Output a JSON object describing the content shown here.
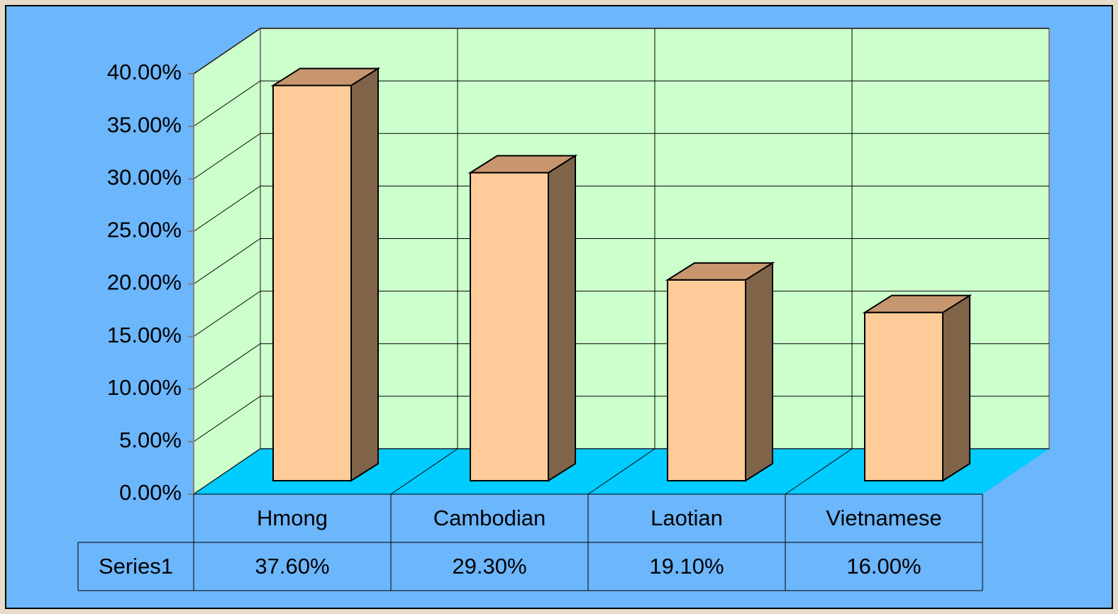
{
  "chart_data": {
    "type": "bar3d",
    "categories": [
      "Hmong",
      "Cambodian",
      "Laotian",
      "Vietnamese"
    ],
    "series": [
      {
        "name": "Series1",
        "color": "#ffcc99",
        "values": [
          37.6,
          29.3,
          19.1,
          16.0
        ],
        "value_labels": [
          "37.60%",
          "29.30%",
          "19.10%",
          "16.00%"
        ]
      }
    ],
    "ylim": [
      0,
      40
    ],
    "yticks": [
      {
        "value": 0,
        "label": "0.00%"
      },
      {
        "value": 5,
        "label": "5.00%"
      },
      {
        "value": 10,
        "label": "10.00%"
      },
      {
        "value": 15,
        "label": "15.00%"
      },
      {
        "value": 20,
        "label": "20.00%"
      },
      {
        "value": 25,
        "label": "25.00%"
      },
      {
        "value": 30,
        "label": "30.00%"
      },
      {
        "value": 35,
        "label": "35.00%"
      },
      {
        "value": 40,
        "label": "40.00%"
      }
    ],
    "grid": true,
    "data_table": true
  }
}
